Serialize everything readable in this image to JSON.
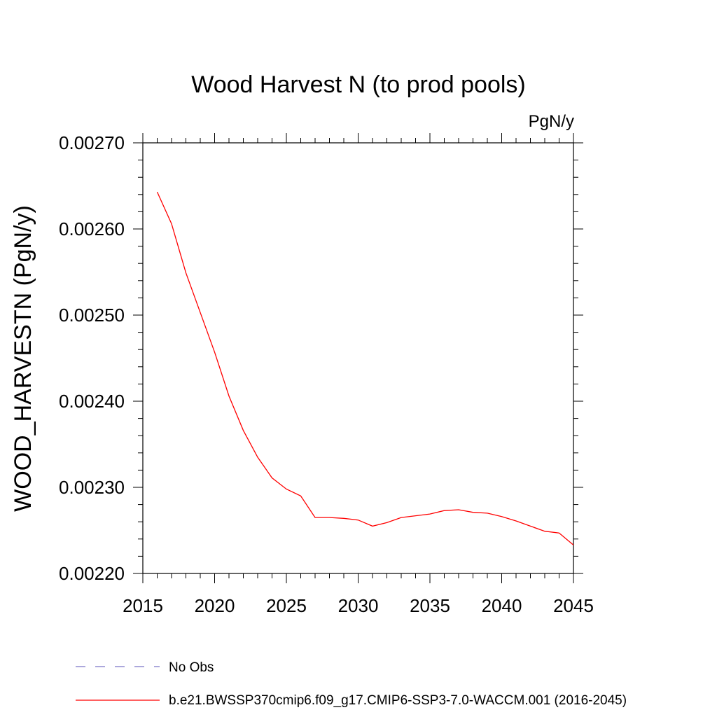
{
  "chart_data": {
    "type": "line",
    "title": "Wood Harvest N (to prod pools)",
    "units": "PgN/y",
    "xlabel": "",
    "ylabel": "WOOD_HARVESTN  (PgN/y)",
    "xlim": [
      2015,
      2045
    ],
    "ylim": [
      0.0022,
      0.0027
    ],
    "x_ticks": [
      "2015",
      "2020",
      "2025",
      "2030",
      "2035",
      "2040",
      "2045"
    ],
    "y_ticks": [
      "0.00220",
      "0.00230",
      "0.00240",
      "0.00250",
      "0.00260",
      "0.00270"
    ],
    "series": [
      {
        "name": "b.e21.BWSSP370cmip6.f09_g17.CMIP6-SSP3-7.0-WACCM.001 (2016-2045)",
        "color": "#ff0000",
        "x": [
          2016,
          2017,
          2018,
          2019,
          2020,
          2021,
          2022,
          2023,
          2024,
          2025,
          2026,
          2027,
          2028,
          2029,
          2030,
          2031,
          2032,
          2033,
          2034,
          2035,
          2036,
          2037,
          2038,
          2039,
          2040,
          2041,
          2042,
          2043,
          2044,
          2045
        ],
        "values": [
          0.002643,
          0.002606,
          0.002549,
          0.002503,
          0.002457,
          0.002406,
          0.002366,
          0.002335,
          0.002311,
          0.002298,
          0.00229,
          0.002265,
          0.002265,
          0.002264,
          0.002262,
          0.002255,
          0.002259,
          0.002265,
          0.002267,
          0.002269,
          0.002273,
          0.002274,
          0.002271,
          0.00227,
          0.002266,
          0.002261,
          0.002255,
          0.002249,
          0.002247,
          0.002233
        ]
      }
    ],
    "legend": [
      {
        "label": "No Obs",
        "color": "#7b74c6",
        "style": "dashed"
      },
      {
        "label": "b.e21.BWSSP370cmip6.f09_g17.CMIP6-SSP3-7.0-WACCM.001 (2016-2045)",
        "color": "#ff0000",
        "style": "solid"
      }
    ]
  }
}
